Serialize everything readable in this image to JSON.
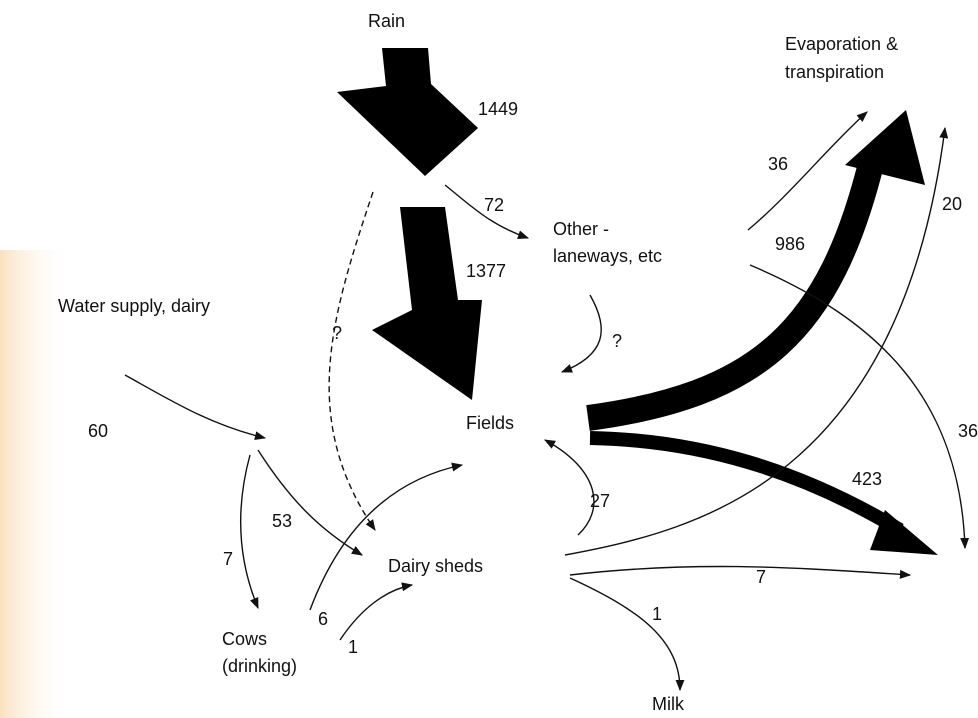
{
  "nodes": [
    "Rain",
    "Other -",
    "laneways, etc",
    "Water supply, dairy",
    "Fields",
    "Evaporation &",
    "transpiration",
    "Dairy sheds",
    "Cows",
    "(drinking)",
    "Milk"
  ],
  "flow_labels": [
    "1449",
    "72",
    "1377",
    "?",
    "?",
    "60",
    "36",
    "20",
    "986",
    "36",
    "423",
    "27",
    "53",
    "7",
    "7",
    "6",
    "1",
    "1"
  ]
}
